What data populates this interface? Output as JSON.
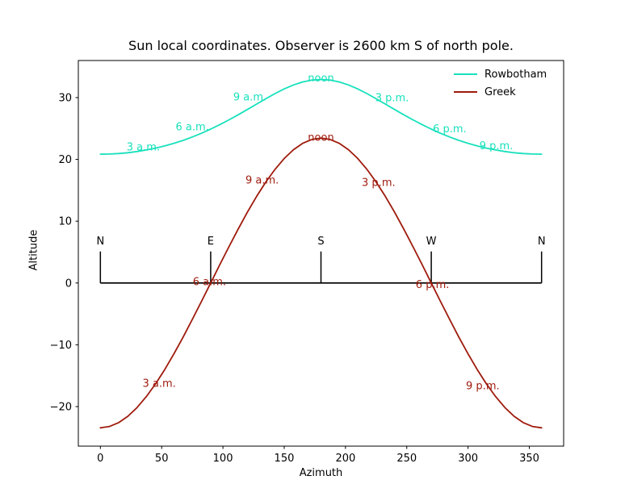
{
  "title": "Sun local coordinates. Observer is 2600 km S of north pole.",
  "chart_data": {
    "type": "line",
    "title": "Sun local coordinates. Observer is 2600 km S of north pole.",
    "xlabel": "Azimuth",
    "ylabel": "Altitude",
    "xlim": [
      -18,
      378
    ],
    "ylim": [
      -26.4,
      36.0
    ],
    "xticks": [
      0,
      50,
      100,
      150,
      200,
      250,
      300,
      350
    ],
    "yticks": [
      30,
      20,
      10,
      0,
      -10,
      -20
    ],
    "grid": false,
    "legend_position": "upper right",
    "legend_frame": false,
    "x": [
      0,
      7.5,
      15,
      22.5,
      30,
      37.5,
      45,
      52.5,
      60,
      67.5,
      75,
      82.5,
      90,
      97.5,
      105,
      112.5,
      120,
      127.5,
      135,
      142.5,
      150,
      157.5,
      165,
      172.5,
      180,
      187.5,
      195,
      202.5,
      210,
      217.5,
      225,
      232.5,
      240,
      247.5,
      255,
      262.5,
      270,
      277.5,
      285,
      292.5,
      300,
      307.5,
      315,
      322.5,
      330,
      337.5,
      345,
      352.5,
      360
    ],
    "series": [
      {
        "name": "Rowbotham",
        "color": "#17e1bc",
        "values": [
          20.84,
          20.87,
          20.95,
          21.08,
          21.27,
          21.52,
          21.82,
          22.18,
          22.6,
          23.08,
          23.63,
          24.23,
          24.9,
          25.63,
          26.41,
          27.23,
          28.08,
          28.95,
          29.81,
          30.65,
          31.4,
          32.04,
          32.53,
          32.83,
          32.93,
          32.83,
          32.53,
          32.04,
          31.4,
          30.65,
          29.81,
          28.95,
          28.08,
          27.23,
          26.41,
          25.63,
          24.9,
          24.23,
          23.63,
          23.08,
          22.6,
          22.18,
          21.82,
          21.52,
          21.27,
          21.08,
          20.95,
          20.87,
          20.84
        ]
      },
      {
        "name": "Greek",
        "color": "#9e1a0c",
        "values": [
          -23.44,
          -23.22,
          -22.59,
          -21.56,
          -20.15,
          -18.39,
          -16.34,
          -14.01,
          -11.47,
          -8.75,
          -5.91,
          -2.98,
          0,
          2.98,
          5.91,
          8.75,
          11.47,
          14.01,
          16.34,
          18.39,
          20.15,
          21.56,
          22.59,
          23.22,
          23.44,
          23.22,
          22.59,
          21.56,
          20.15,
          18.39,
          16.34,
          14.01,
          11.47,
          8.75,
          5.91,
          2.98,
          0,
          -2.98,
          -5.91,
          -8.75,
          -11.47,
          -14.01,
          -16.34,
          -18.39,
          -20.15,
          -21.56,
          -22.59,
          -23.22,
          -23.44
        ]
      }
    ],
    "hour_labels": [
      {
        "series": "Rowbotham",
        "text": "3 a.m.",
        "az": 35,
        "alt": 22.0
      },
      {
        "series": "Rowbotham",
        "text": "6 a.m.",
        "az": 75,
        "alt": 25.3
      },
      {
        "series": "Rowbotham",
        "text": "9 a.m.",
        "az": 122,
        "alt": 30.1
      },
      {
        "series": "Rowbotham",
        "text": "noon",
        "az": 180,
        "alt": 33.2
      },
      {
        "series": "Rowbotham",
        "text": "3 p.m.",
        "az": 238,
        "alt": 30.0
      },
      {
        "series": "Rowbotham",
        "text": "6 p.m.",
        "az": 285,
        "alt": 25.0
      },
      {
        "series": "Rowbotham",
        "text": "9 p.m.",
        "az": 323,
        "alt": 22.2
      },
      {
        "series": "Greek",
        "text": "3 a.m.",
        "az": 48,
        "alt": -16.2
      },
      {
        "series": "Greek",
        "text": "6 a.m.",
        "az": 89,
        "alt": 0.2
      },
      {
        "series": "Greek",
        "text": "9 a.m.",
        "az": 132,
        "alt": 16.7
      },
      {
        "series": "Greek",
        "text": "noon",
        "az": 180,
        "alt": 23.6
      },
      {
        "series": "Greek",
        "text": "3 p.m.",
        "az": 227,
        "alt": 16.3
      },
      {
        "series": "Greek",
        "text": "6 p.m.",
        "az": 271,
        "alt": -0.2
      },
      {
        "series": "Greek",
        "text": "9 p.m.",
        "az": 312,
        "alt": -16.6
      }
    ],
    "compass": {
      "color": "#000000",
      "baseline_alt": 0,
      "tick_top_alt": 5.1,
      "label_alt": 6.8,
      "marks": [
        {
          "az": 0,
          "label": "N"
        },
        {
          "az": 90,
          "label": "E"
        },
        {
          "az": 180,
          "label": "S"
        },
        {
          "az": 270,
          "label": "W"
        },
        {
          "az": 360,
          "label": "N"
        }
      ]
    }
  }
}
